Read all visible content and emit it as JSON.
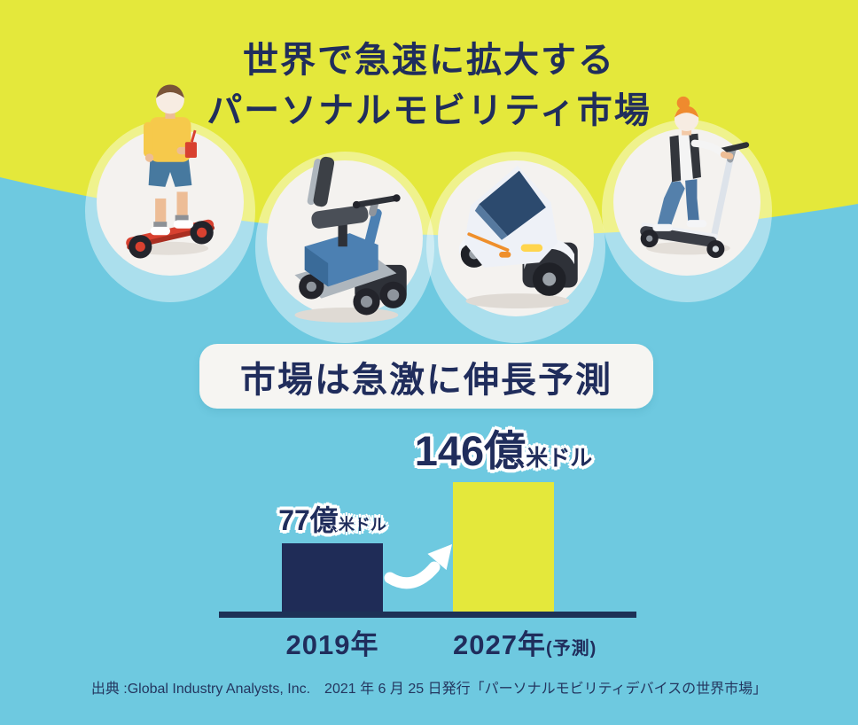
{
  "title": {
    "line1": "世界で急速に拡大する",
    "line2": "パーソナルモビリティ市場"
  },
  "devices": [
    {
      "icon": "hoverboard-rider-illustration"
    },
    {
      "icon": "mobility-scooter-illustration"
    },
    {
      "icon": "micro-ev-illustration"
    },
    {
      "icon": "kick-scooter-rider-illustration"
    }
  ],
  "section_heading": "市場は急激に伸長予測",
  "chart_data": {
    "type": "bar",
    "title": "市場は急激に伸長予測",
    "categories": [
      "2019年",
      "2027年(予測)"
    ],
    "values": [
      77,
      146
    ],
    "unit": "億米ドル",
    "value_labels": [
      "77億米ドル",
      "146億米ドル"
    ],
    "bar_colors": [
      "#1f2c57",
      "#e4e83b"
    ],
    "ylim": [
      0,
      150
    ],
    "grid": false,
    "legend": "none",
    "annotations": [
      "growth-arrow-between-bars"
    ]
  },
  "bars": [
    {
      "value": "77",
      "oku": "億",
      "currency": "米ドル",
      "year": "2019年",
      "note": ""
    },
    {
      "value": "146",
      "oku": "億",
      "currency": "米ドル",
      "year": "2027年",
      "note": "(予測)"
    }
  ],
  "source": "出典 :Global Industry Analysts, Inc.　2021 年 6 月 25 日発行「パーソナルモビリティデバイスの世界市場」",
  "colors": {
    "background_top": "#e4e83b",
    "background_bottom": "#6ec9e0",
    "text_navy": "#202d5c",
    "panel_white": "#f6f5f2",
    "bar_2019": "#1f2c57",
    "bar_2027": "#e4e83b",
    "axis": "#1d3156",
    "arrow": "#ffffff"
  }
}
